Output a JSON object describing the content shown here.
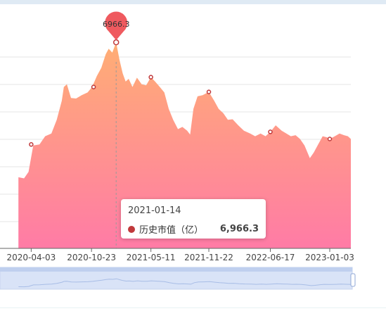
{
  "chart_data": {
    "type": "area",
    "series": [
      {
        "name": "历史市值（亿）",
        "x": [
          "2020-02-20",
          "2020-03-10",
          "2020-03-25",
          "2020-04-10",
          "2020-05-01",
          "2020-05-20",
          "2020-06-10",
          "2020-06-28",
          "2020-07-15",
          "2020-07-22",
          "2020-08-01",
          "2020-08-15",
          "2020-09-01",
          "2020-09-20",
          "2020-10-10",
          "2020-10-25",
          "2020-11-10",
          "2020-11-25",
          "2020-12-10",
          "2020-12-20",
          "2021-01-01",
          "2021-01-14",
          "2021-01-25",
          "2021-02-05",
          "2021-02-15",
          "2021-02-25",
          "2021-03-10",
          "2021-03-25",
          "2021-04-10",
          "2021-04-25",
          "2021-05-11",
          "2021-05-25",
          "2021-06-10",
          "2021-06-25",
          "2021-07-10",
          "2021-07-25",
          "2021-08-10",
          "2021-08-25",
          "2021-09-10",
          "2021-09-20",
          "2021-10-01",
          "2021-10-15",
          "2021-11-01",
          "2021-11-22",
          "2021-12-10",
          "2021-12-25",
          "2022-01-10",
          "2022-01-25",
          "2022-02-10",
          "2022-03-01",
          "2022-03-20",
          "2022-04-10",
          "2022-04-27",
          "2022-05-15",
          "2022-06-01",
          "2022-06-17",
          "2022-07-05",
          "2022-07-25",
          "2022-08-10",
          "2022-08-25",
          "2022-09-10",
          "2022-09-25",
          "2022-10-10",
          "2022-10-28",
          "2022-11-10",
          "2022-11-25",
          "2022-12-10",
          "2022-12-25",
          "2023-01-03",
          "2023-01-20",
          "2023-02-05",
          "2023-02-20",
          "2023-03-05",
          "2023-03-15"
        ],
        "values": [
          4500,
          4480,
          4600,
          5080,
          5100,
          5250,
          5300,
          5550,
          5900,
          6150,
          6200,
          5950,
          5940,
          6000,
          6050,
          6150,
          6350,
          6500,
          6750,
          6850,
          6780,
          6966.3,
          6650,
          6400,
          6250,
          6300,
          6150,
          6320,
          6200,
          6180,
          6330,
          6250,
          6150,
          6050,
          5750,
          5550,
          5380,
          5420,
          5350,
          5280,
          5750,
          5980,
          6000,
          6060,
          5900,
          5750,
          5670,
          5550,
          5560,
          5450,
          5350,
          5300,
          5250,
          5300,
          5250,
          5330,
          5450,
          5350,
          5300,
          5250,
          5270,
          5200,
          5080,
          4850,
          4950,
          5100,
          5250,
          5230,
          5200,
          5250,
          5300,
          5270,
          5250,
          5200
        ],
        "markers": [
          {
            "x": "2020-04-03",
            "value": 5100
          },
          {
            "x": "2020-10-30",
            "value": 6150
          },
          {
            "x": "2021-01-14",
            "value": 6966.3
          },
          {
            "x": "2021-05-11",
            "value": 6330
          },
          {
            "x": "2021-11-22",
            "value": 6060
          },
          {
            "x": "2022-06-17",
            "value": 5330
          },
          {
            "x": "2023-01-03",
            "value": 5200
          }
        ],
        "color_top": "#ffae74",
        "color_bottom": "#ff7ba6",
        "marker_color": "#c0393b"
      }
    ],
    "x_tick_labels": [
      "2020-04-03",
      "2020-10-23",
      "2021-05-11",
      "2021-11-22",
      "2022-06-17",
      "2023-01-03"
    ],
    "ylim": [
      3200,
      7200
    ],
    "grid": true,
    "peak_label": "6966.3",
    "peak_color": "#ef5a5f",
    "axis_color": "#666666",
    "grid_color": "#e4e4e4"
  },
  "tooltip": {
    "date": "2021-01-14",
    "series_label": "历史市值（亿）",
    "value": "6,966.3",
    "dot_color": "#c0393b"
  },
  "crosshair_x": "2021-01-14",
  "slider": {
    "window": [
      "2020-02-20",
      "2023-03-15"
    ],
    "fill_color": "#d9e3f7",
    "line_color": "#a8bde6"
  }
}
